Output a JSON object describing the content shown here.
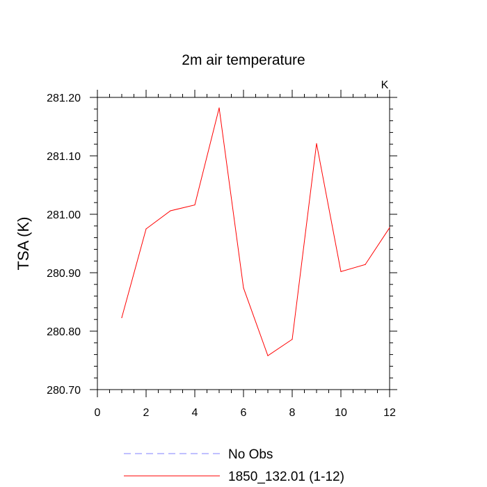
{
  "chart_data": {
    "type": "line",
    "title": "2m air temperature",
    "ylabel": "TSA  (K)",
    "units_label": "K",
    "xlim": [
      0,
      12
    ],
    "ylim": [
      280.7,
      281.2
    ],
    "x_ticks": [
      0,
      2,
      4,
      6,
      8,
      10,
      12
    ],
    "x_tick_labels": [
      "0",
      "2",
      "4",
      "6",
      "8",
      "10",
      "12"
    ],
    "y_ticks": [
      280.7,
      280.8,
      280.9,
      281.0,
      281.1,
      281.2
    ],
    "y_tick_labels": [
      "280.70",
      "280.80",
      "280.90",
      "281.00",
      "281.10",
      "281.20"
    ],
    "grid": false,
    "legend_position": "bottom",
    "series": [
      {
        "name": "No Obs",
        "color": "#8080ff",
        "style": "dashed",
        "x": [],
        "values": []
      },
      {
        "name": "1850_132.01 (1-12)",
        "color": "#ff0000",
        "style": "solid",
        "x": [
          1,
          2,
          3,
          4,
          5,
          6,
          7,
          8,
          9,
          10,
          11,
          12
        ],
        "values": [
          280.823,
          280.975,
          281.006,
          281.016,
          281.182,
          280.874,
          280.758,
          280.786,
          281.121,
          280.902,
          280.914,
          280.977
        ]
      }
    ]
  }
}
